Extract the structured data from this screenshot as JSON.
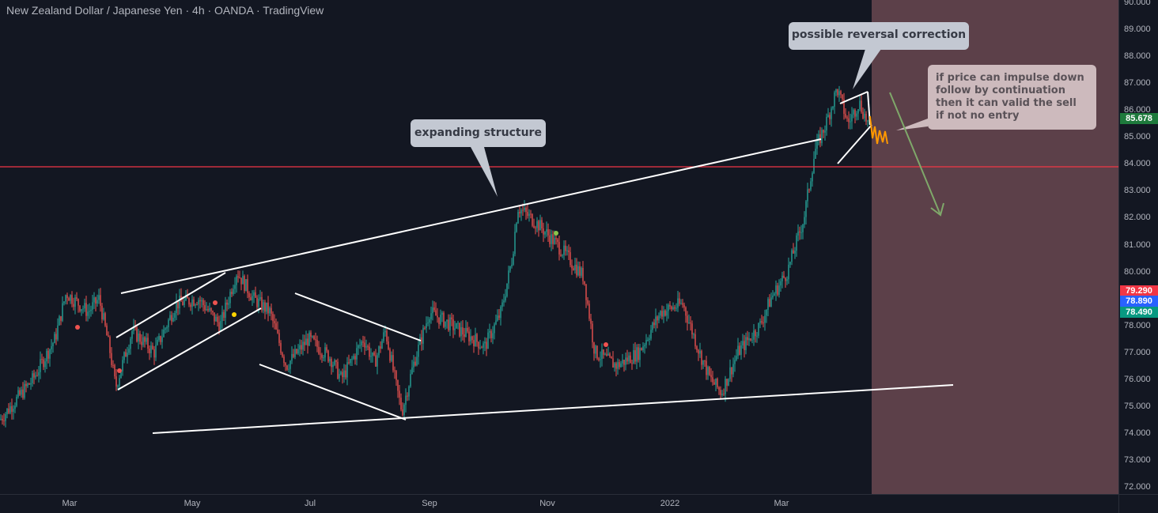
{
  "header": {
    "title": "New Zealand Dollar / Japanese Yen · 4h · OANDA · TradingView"
  },
  "price_axis": {
    "min": 72,
    "max": 90,
    "ticks": [
      "90.000",
      "89.000",
      "88.000",
      "87.000",
      "86.000",
      "85.000",
      "84.000",
      "83.000",
      "82.000",
      "81.000",
      "80.000",
      "79.000",
      "78.000",
      "77.000",
      "76.000",
      "75.000",
      "74.000",
      "73.000",
      "72.000"
    ]
  },
  "price_tags": [
    {
      "label": "85.678",
      "value": 85.678,
      "color": "#1e7a3c"
    },
    {
      "label": "79.290",
      "value": 79.29,
      "color": "#f23645"
    },
    {
      "label": "78.890",
      "value": 78.89,
      "color": "#2962ff"
    },
    {
      "label": "78.490",
      "value": 78.49,
      "color": "#089981"
    }
  ],
  "time_axis": {
    "labels": [
      "Mar",
      "May",
      "Jul",
      "Sep",
      "Nov",
      "2022",
      "Mar"
    ]
  },
  "horizontal_level": {
    "price": 83.9,
    "color": "#f23645"
  },
  "forecast_zone": {
    "color": "#5c4049"
  },
  "callouts": {
    "expanding": "expanding structure",
    "reversal": "possible reversal correction",
    "note_lines": [
      "if price can impulse down",
      "follow by continuation",
      "then it can valid the sell",
      "if not no entry"
    ]
  },
  "colors": {
    "up": "#26a69a",
    "down": "#ef5350",
    "bg": "#131722",
    "arrow": "#7fa86a",
    "orange": "#ff9800"
  },
  "chart_data": {
    "type": "candlestick",
    "symbol": "NZDJPY",
    "interval": "4h",
    "ylim": [
      72,
      90
    ],
    "x_ticks": [
      "Mar",
      "May",
      "Jul",
      "Sep",
      "Nov",
      "2022",
      "Mar"
    ],
    "path_points": [
      [
        74.5,
        0.0
      ],
      [
        76.0,
        0.03
      ],
      [
        77.5,
        0.05
      ],
      [
        79.2,
        0.06
      ],
      [
        78.5,
        0.08
      ],
      [
        79.0,
        0.09
      ],
      [
        77.0,
        0.1
      ],
      [
        75.7,
        0.105
      ],
      [
        77.8,
        0.12
      ],
      [
        77.0,
        0.14
      ],
      [
        78.8,
        0.16
      ],
      [
        79.0,
        0.18
      ],
      [
        78.0,
        0.2
      ],
      [
        80.0,
        0.215
      ],
      [
        79.0,
        0.23
      ],
      [
        78.5,
        0.245
      ],
      [
        76.5,
        0.26
      ],
      [
        77.5,
        0.28
      ],
      [
        76.8,
        0.3
      ],
      [
        76.0,
        0.31
      ],
      [
        77.5,
        0.33
      ],
      [
        76.6,
        0.34
      ],
      [
        77.8,
        0.35
      ],
      [
        75.7,
        0.36
      ],
      [
        74.8,
        0.365
      ],
      [
        76.5,
        0.375
      ],
      [
        78.5,
        0.39
      ],
      [
        78.0,
        0.41
      ],
      [
        77.5,
        0.43
      ],
      [
        77.2,
        0.44
      ],
      [
        78.5,
        0.455
      ],
      [
        80.5,
        0.465
      ],
      [
        82.4,
        0.47
      ],
      [
        81.7,
        0.49
      ],
      [
        80.8,
        0.51
      ],
      [
        79.8,
        0.53
      ],
      [
        77.0,
        0.54
      ],
      [
        76.5,
        0.56
      ],
      [
        77.0,
        0.58
      ],
      [
        78.5,
        0.6
      ],
      [
        78.8,
        0.62
      ],
      [
        77.0,
        0.635
      ],
      [
        76.0,
        0.645
      ],
      [
        75.5,
        0.655
      ],
      [
        77.0,
        0.67
      ],
      [
        78.0,
        0.69
      ],
      [
        79.0,
        0.7
      ],
      [
        80.0,
        0.715
      ],
      [
        82.0,
        0.73
      ],
      [
        84.5,
        0.74
      ],
      [
        85.5,
        0.75
      ],
      [
        86.8,
        0.76
      ],
      [
        85.5,
        0.77
      ],
      [
        86.3,
        0.78
      ],
      [
        85.3,
        0.79
      ]
    ]
  }
}
